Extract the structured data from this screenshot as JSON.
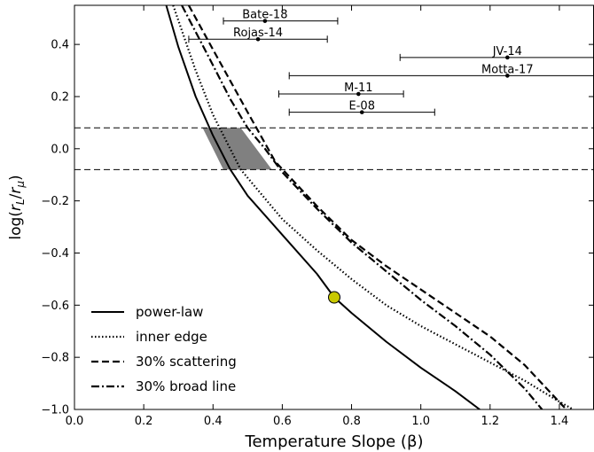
{
  "chart_data": {
    "type": "line",
    "xlabel": "Temperature Slope (β)",
    "ylabel_parts": [
      "log(",
      "r",
      "L",
      "/",
      "r",
      "μ",
      ")"
    ],
    "xlim": [
      0.0,
      1.5
    ],
    "ylim": [
      -1.0,
      0.55
    ],
    "x_ticks": [
      0.0,
      0.2,
      0.4,
      0.6,
      0.8,
      1.0,
      1.2,
      1.4
    ],
    "x_tick_labels": [
      "0.0",
      "0.2",
      "0.4",
      "0.6",
      "0.8",
      "1.0",
      "1.2",
      "1.4"
    ],
    "y_ticks": [
      -1.0,
      -0.8,
      -0.6,
      -0.4,
      -0.2,
      0.0,
      0.2,
      0.4
    ],
    "y_tick_labels": [
      "−1.0",
      "−0.8",
      "−0.6",
      "−0.4",
      "−0.2",
      "0.0",
      "0.2",
      "0.4"
    ],
    "grid": false,
    "legend_position": "lower-left",
    "series": [
      {
        "name": "power-law",
        "style": "solid",
        "x": [
          0.265,
          0.3,
          0.35,
          0.4,
          0.45,
          0.5,
          0.6,
          0.7,
          0.75,
          0.8,
          0.9,
          1.0,
          1.1,
          1.17
        ],
        "y": [
          0.55,
          0.39,
          0.2,
          0.05,
          -0.08,
          -0.18,
          -0.33,
          -0.48,
          -0.57,
          -0.63,
          -0.74,
          -0.84,
          -0.93,
          -1.0
        ]
      },
      {
        "name": "inner edge",
        "style": "dotted",
        "x": [
          0.285,
          0.35,
          0.4,
          0.48,
          0.6,
          0.7,
          0.8,
          0.9,
          1.0,
          1.1,
          1.2,
          1.3,
          1.4,
          1.44
        ],
        "y": [
          0.55,
          0.3,
          0.13,
          -0.08,
          -0.27,
          -0.39,
          -0.5,
          -0.6,
          -0.68,
          -0.75,
          -0.82,
          -0.89,
          -0.97,
          -1.0
        ]
      },
      {
        "name": "30% scattering",
        "style": "dashed",
        "x": [
          0.33,
          0.4,
          0.45,
          0.5,
          0.58,
          0.7,
          0.8,
          0.9,
          1.0,
          1.1,
          1.2,
          1.3,
          1.42
        ],
        "y": [
          0.55,
          0.38,
          0.26,
          0.14,
          -0.05,
          -0.22,
          -0.35,
          -0.45,
          -0.54,
          -0.63,
          -0.72,
          -0.83,
          -1.0
        ]
      },
      {
        "name": "30% broad line",
        "style": "dashdot",
        "x": [
          0.31,
          0.4,
          0.45,
          0.5,
          0.55,
          0.6,
          0.7,
          0.8,
          0.9,
          1.0,
          1.1,
          1.2,
          1.3,
          1.35
        ],
        "y": [
          0.55,
          0.32,
          0.19,
          0.08,
          0.0,
          -0.09,
          -0.23,
          -0.36,
          -0.47,
          -0.58,
          -0.68,
          -0.79,
          -0.92,
          -1.0
        ]
      }
    ],
    "marker_point": {
      "x": 0.75,
      "y": -0.57,
      "color": "#c8c800"
    },
    "hlines": [
      0.08,
      -0.08
    ],
    "shaded_region": {
      "color": "#808080",
      "points": [
        [
          0.37,
          0.08
        ],
        [
          0.48,
          0.08
        ],
        [
          0.57,
          -0.08
        ],
        [
          0.43,
          -0.08
        ]
      ]
    },
    "errorbars": [
      {
        "label": "Bate-18",
        "x": 0.55,
        "y": 0.49,
        "xmin": 0.43,
        "xmax": 0.76
      },
      {
        "label": "Rojas-14",
        "x": 0.53,
        "y": 0.42,
        "xmin": 0.33,
        "xmax": 0.73
      },
      {
        "label": "JV-14",
        "x": 1.25,
        "y": 0.35,
        "xmin": 0.94,
        "xmax": 1.5
      },
      {
        "label": "Motta-17",
        "x": 1.25,
        "y": 0.28,
        "xmin": 0.62,
        "xmax": 1.5
      },
      {
        "label": "M-11",
        "x": 0.82,
        "y": 0.21,
        "xmin": 0.59,
        "xmax": 0.95
      },
      {
        "label": "E-08",
        "x": 0.83,
        "y": 0.14,
        "xmin": 0.62,
        "xmax": 1.04
      }
    ],
    "colors": {
      "lines": "#000000",
      "shade": "#808080",
      "marker": "#c8c800"
    }
  }
}
